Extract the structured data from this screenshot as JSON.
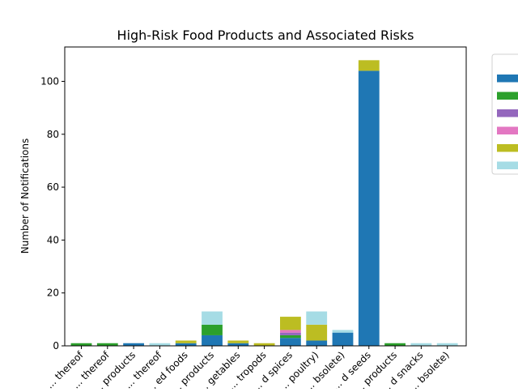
{
  "chart_data": {
    "type": "bar",
    "stacked": true,
    "title": "High-Risk Food Products and Associated Risks",
    "xlabel": "",
    "ylabel": "Number of Notifications",
    "ylim": [
      0,
      113
    ],
    "yticks": [
      0,
      20,
      40,
      60,
      80,
      100
    ],
    "grid": false,
    "legend_position": "right (outside plot)",
    "categories": [
      "... thereof",
      "... thereof",
      "... products",
      "... thereof",
      "... foods",
      "... products",
      "... vegetables",
      "... gastropods",
      "... spices",
      "... poultry)",
      "... (obsolete)",
      "... seeds",
      "... products",
      "... snacks",
      "... (obsolete)"
    ],
    "tick_labels": [
      "... thereof",
      "... thereof",
      "... products",
      "... thereof",
      "... ed foods",
      "... products",
      "... getables",
      "... tropods",
      "... d spices",
      "... poultry)",
      "... bsolete)",
      "... d seeds",
      "... products",
      "... d snacks",
      "... bsolete)"
    ],
    "series": [
      {
        "color": "#1f77b4",
        "values": [
          0,
          0,
          1,
          0,
          1,
          4,
          1,
          0,
          3,
          2,
          5,
          104,
          0,
          0,
          0
        ]
      },
      {
        "color": "#2ca02c",
        "values": [
          1,
          1,
          0,
          0,
          0,
          4,
          0,
          0,
          1,
          0,
          0,
          0,
          1,
          0,
          0
        ]
      },
      {
        "color": "#9467bd",
        "values": [
          0,
          0,
          0,
          0,
          0,
          0,
          0,
          0,
          1,
          0,
          0,
          0,
          0,
          0,
          0
        ]
      },
      {
        "color": "#e377c2",
        "values": [
          0,
          0,
          0,
          0,
          0,
          0,
          0,
          0,
          1,
          0,
          0,
          0,
          0,
          0,
          0
        ]
      },
      {
        "color": "#bcbd22",
        "values": [
          0,
          0,
          0,
          0,
          1,
          0,
          1,
          1,
          5,
          6,
          0,
          4,
          0,
          0,
          0
        ]
      },
      {
        "color": "#a6dce5",
        "values": [
          0,
          0,
          0,
          1,
          0,
          5,
          0,
          0,
          0,
          5,
          1,
          0,
          0,
          1,
          1
        ]
      }
    ]
  }
}
